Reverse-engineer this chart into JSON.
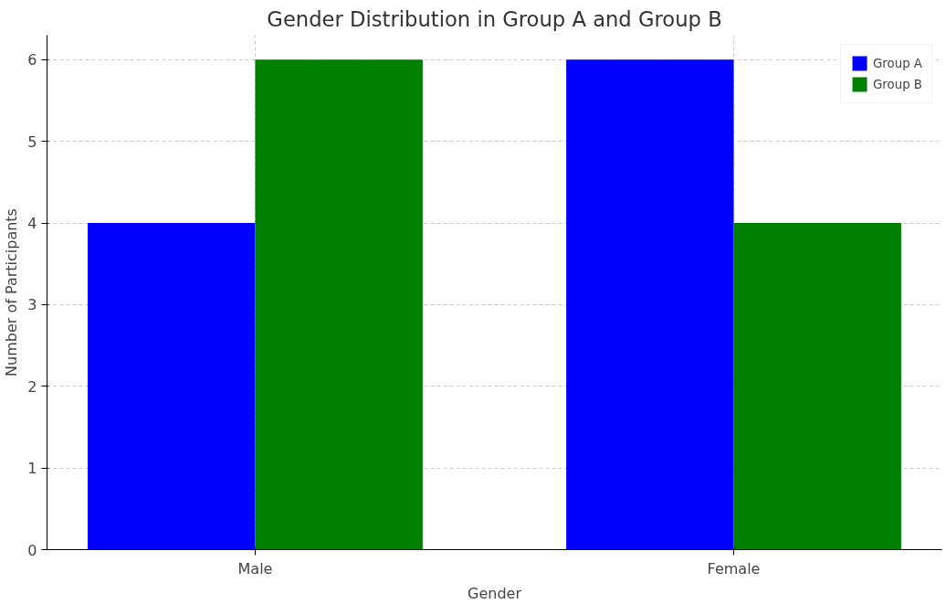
{
  "chart_data": {
    "type": "bar",
    "title": "Gender Distribution in Group A and Group B",
    "xlabel": "Gender",
    "ylabel": "Number of Participants",
    "categories": [
      "Male",
      "Female"
    ],
    "series": [
      {
        "name": "Group A",
        "color": "#0000ff",
        "values": [
          4,
          6
        ]
      },
      {
        "name": "Group B",
        "color": "#008000",
        "values": [
          6,
          4
        ]
      }
    ],
    "ylim": [
      0,
      6.3
    ],
    "yticks": [
      0,
      1,
      2,
      3,
      4,
      5,
      6
    ],
    "grid": true,
    "legend": "top right"
  }
}
